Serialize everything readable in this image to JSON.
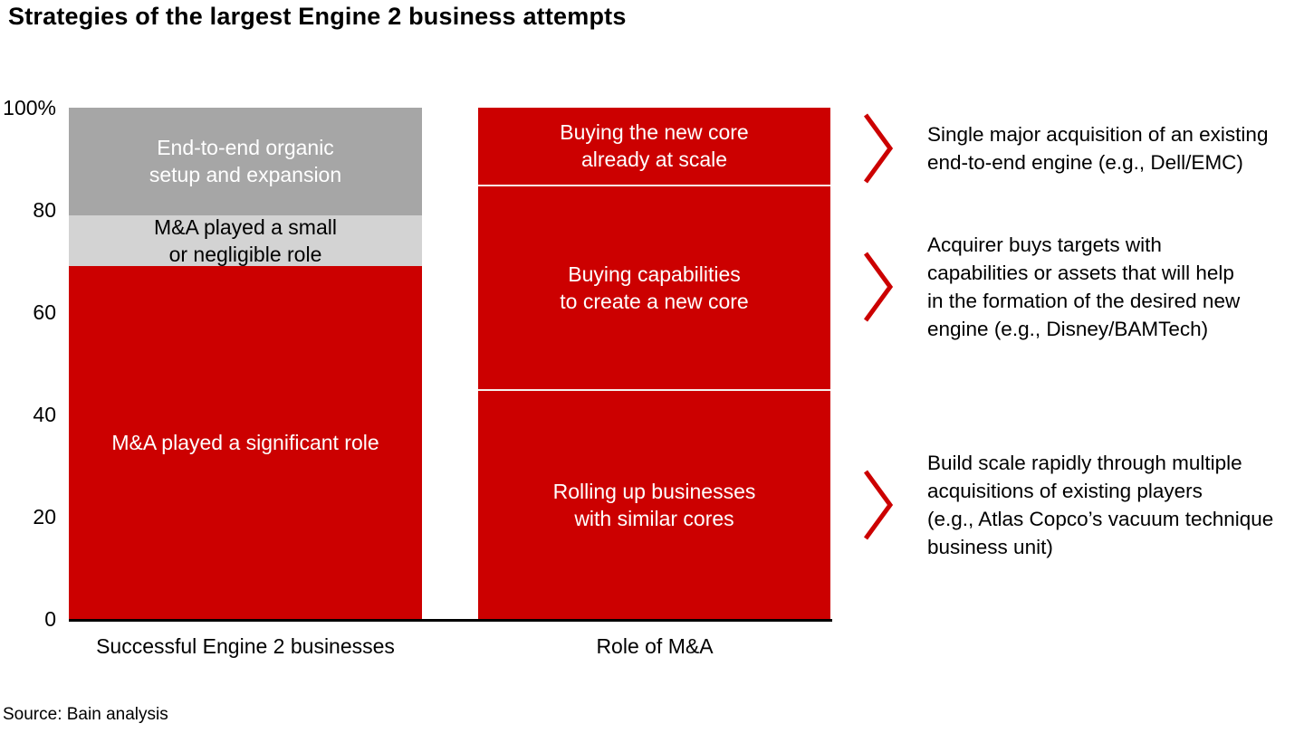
{
  "title": "Strategies of the largest Engine 2 business attempts",
  "source": "Source: Bain analysis",
  "colors": {
    "red": "#cc0000",
    "dark_gray": "#a6a6a6",
    "light_gray": "#d3d3d3",
    "axis": "#000000",
    "divider": "#f6f1ec",
    "chevron": "#cc0000"
  },
  "chart_data": {
    "type": "bar",
    "stacked": true,
    "title": "Strategies of the largest Engine 2 business attempts",
    "ylim": [
      0,
      100
    ],
    "y_unit": "%",
    "grid": false,
    "y_ticks": [
      "100%",
      "80",
      "60",
      "40",
      "20",
      "0"
    ],
    "categories": [
      "Successful Engine 2 businesses",
      "Role of M&A"
    ],
    "stacks": [
      {
        "category": "Successful Engine 2 businesses",
        "segments": [
          {
            "label": "M&A played a significant role",
            "value": 69,
            "color": "#cc0000",
            "text_color": "#ffffff"
          },
          {
            "label": "M&A played a small\nor negligible role",
            "value": 10,
            "color": "#d3d3d3",
            "text_color": "#000000"
          },
          {
            "label": "End-to-end organic\nsetup and expansion",
            "value": 21,
            "color": "#a6a6a6",
            "text_color": "#ffffff"
          }
        ]
      },
      {
        "category": "Role of M&A",
        "segments": [
          {
            "label": "Rolling up businesses\nwith similar cores",
            "value": 45,
            "color": "#cc0000",
            "text_color": "#ffffff"
          },
          {
            "label": "Buying capabilities\nto create a new core",
            "value": 40,
            "color": "#cc0000",
            "text_color": "#ffffff"
          },
          {
            "label": "Buying the new core\nalready at scale",
            "value": 15,
            "color": "#cc0000",
            "text_color": "#ffffff"
          }
        ]
      }
    ]
  },
  "annotations": [
    {
      "text": "Single major acquisition of an existing\nend-to-end engine (e.g., Dell/EMC)"
    },
    {
      "text": "Acquirer buys targets with\ncapabilities or assets that will help\nin the formation of the desired new\nengine (e.g., Disney/BAMTech)"
    },
    {
      "text": "Build scale rapidly through multiple\nacquisitions of existing players\n(e.g., Atlas Copco’s vacuum technique\nbusiness unit)"
    }
  ]
}
